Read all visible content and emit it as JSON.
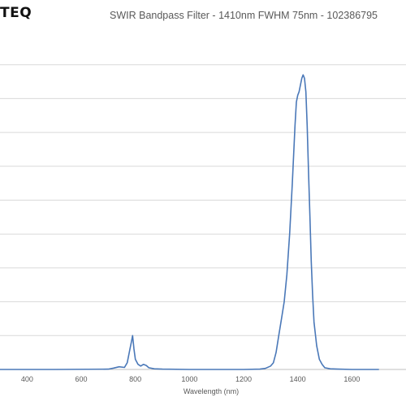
{
  "brand": {
    "logo_text": "TEQ"
  },
  "chart_data": {
    "type": "line",
    "title": "SWIR Bandpass Filter - 1410nm FWHM 75nm - 102386795",
    "xlabel": "Wavelength (nm)",
    "ylabel": "",
    "xlim": [
      300,
      1800
    ],
    "ylim": [
      0,
      100
    ],
    "x_tick_labels": [
      "400",
      "600",
      "800",
      "1000",
      "1200",
      "1400",
      "1600"
    ],
    "y_gridlines": [
      0,
      10,
      20,
      30,
      40,
      50,
      60,
      70,
      80,
      90
    ],
    "grid": "horizontal",
    "line_color": "#4a78b8",
    "series": [
      {
        "x": [
          300,
          500,
          700,
          720,
          740,
          760,
          770,
          780,
          785,
          790,
          795,
          800,
          810,
          820,
          830,
          840,
          850,
          870,
          900,
          1000,
          1100,
          1200,
          1260,
          1280,
          1300,
          1310,
          1320,
          1330,
          1340,
          1350,
          1360,
          1370,
          1380,
          1390,
          1395,
          1400,
          1405,
          1410,
          1415,
          1420,
          1425,
          1430,
          1435,
          1440,
          1445,
          1450,
          1455,
          1460,
          1470,
          1480,
          1490,
          1500,
          1520,
          1550,
          1600,
          1700
        ],
        "y": [
          0,
          0,
          0.1,
          0.4,
          0.8,
          0.6,
          2,
          6,
          8,
          10,
          6,
          3,
          1.5,
          1,
          1.5,
          1.2,
          0.5,
          0.2,
          0.1,
          0,
          0,
          0,
          0.1,
          0.3,
          1,
          2,
          5,
          10,
          15,
          20,
          28,
          40,
          55,
          72,
          79,
          81,
          82,
          84,
          86,
          87,
          86,
          82,
          72,
          58,
          45,
          32,
          22,
          14,
          7,
          3,
          1.5,
          0.5,
          0.2,
          0.1,
          0,
          0
        ]
      }
    ]
  }
}
